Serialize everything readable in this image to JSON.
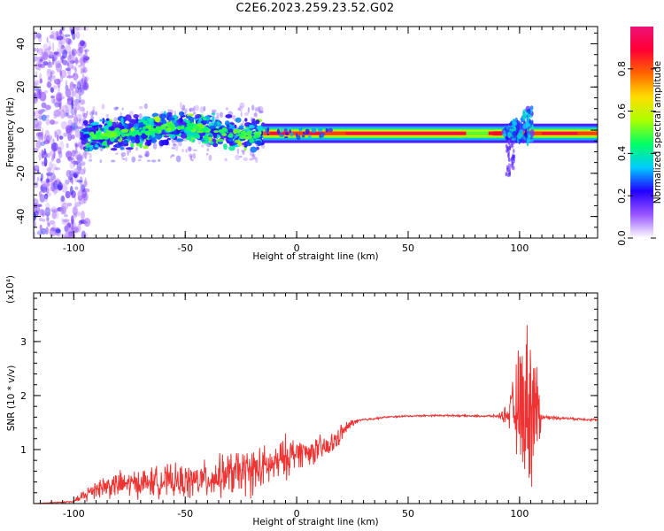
{
  "title": "C2E6.2023.259.23.52.G02",
  "chart_data": [
    {
      "type": "heatmap",
      "xlabel": "Height of straight line (km)",
      "ylabel": "Frequency (Hz)",
      "xlim": [
        -118,
        135
      ],
      "ylim": [
        -50,
        48
      ],
      "xticks": [
        -100,
        -50,
        0,
        50,
        100
      ],
      "xtick_labels": [
        "-100",
        "-50",
        "0",
        "50",
        "100"
      ],
      "yticks": [
        -40,
        -20,
        0,
        20,
        40
      ],
      "ytick_labels": [
        "-40",
        "-20",
        "0",
        "20",
        "40"
      ],
      "colorbar": {
        "label": "Normalized spectral amplitude",
        "range": [
          0,
          1
        ],
        "ticks": [
          0.0,
          0.2,
          0.4,
          0.6,
          0.8
        ],
        "tick_labels": [
          "0.0",
          "0.2",
          "0.4",
          "0.6",
          "0.8"
        ],
        "colormap": [
          "#ffffff",
          "#9955ff",
          "#2200ff",
          "#00ccff",
          "#00ff66",
          "#aaff00",
          "#ffdd00",
          "#ff6600",
          "#ff0033",
          "#ee1177"
        ]
      },
      "band_center_hz": -1.5,
      "features": [
        {
          "x_range": [
            -118,
            -96
          ],
          "freq_range": [
            -50,
            48
          ],
          "amplitude": 0.1,
          "description": "diffuse low-amplitude noise"
        },
        {
          "x_range": [
            -96,
            -15
          ],
          "freq_range": [
            -8,
            8
          ],
          "amplitude": 0.35,
          "description": "scattered broadband blobs"
        },
        {
          "x_range": [
            -15,
            135
          ],
          "freq_range": [
            -3,
            0
          ],
          "amplitude": 0.9,
          "description": "narrow carrier line"
        },
        {
          "x_range": [
            93,
            106
          ],
          "freq_range": [
            -22,
            10
          ],
          "amplitude": 0.3,
          "description": "spread burst"
        }
      ]
    },
    {
      "type": "line",
      "xlabel": "Height of straight line (km)",
      "ylabel": "SNR (10 * v/v)",
      "y_multiplier": "(x10⁴)",
      "xlim": [
        -118,
        135
      ],
      "ylim": [
        0,
        3.9
      ],
      "xticks": [
        -100,
        -50,
        0,
        50,
        100
      ],
      "xtick_labels": [
        "-100",
        "-50",
        "0",
        "50",
        "100"
      ],
      "yticks": [
        1,
        2,
        3
      ],
      "ytick_labels": [
        "1",
        "2",
        "3"
      ],
      "color": "#ee3333",
      "x": [
        -118,
        -100,
        -95,
        -90,
        -80,
        -70,
        -60,
        -50,
        -40,
        -30,
        -20,
        -15,
        -10,
        -5,
        0,
        5,
        10,
        15,
        20,
        25,
        30,
        40,
        50,
        60,
        70,
        80,
        90,
        95,
        100,
        105,
        108,
        110,
        120,
        130,
        135
      ],
      "y": [
        0.0,
        0.02,
        0.15,
        0.3,
        0.35,
        0.38,
        0.42,
        0.4,
        0.45,
        0.55,
        0.6,
        0.65,
        0.72,
        0.85,
        0.95,
        0.95,
        1.0,
        1.05,
        1.3,
        1.5,
        1.55,
        1.6,
        1.62,
        1.63,
        1.63,
        1.62,
        1.62,
        1.65,
        1.8,
        1.9,
        1.65,
        1.6,
        1.58,
        1.56,
        1.55
      ],
      "noise_amplitude": [
        0.0,
        0.03,
        0.18,
        0.25,
        0.3,
        0.32,
        0.35,
        0.38,
        0.42,
        0.5,
        0.55,
        0.5,
        0.4,
        0.5,
        0.35,
        0.3,
        0.3,
        0.28,
        0.2,
        0.08,
        0.03,
        0.02,
        0.02,
        0.02,
        0.02,
        0.02,
        0.03,
        0.25,
        1.4,
        2.0,
        1.2,
        0.05,
        0.03,
        0.03,
        0.03
      ]
    }
  ]
}
